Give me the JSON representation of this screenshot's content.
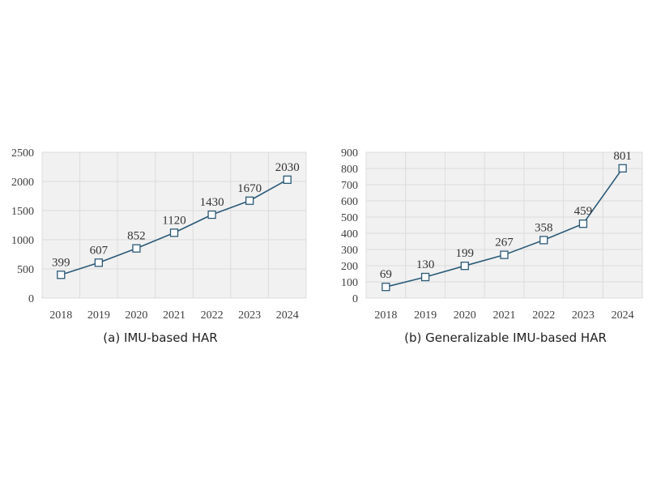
{
  "colors": {
    "line": "#2b5a78",
    "plot_background": "#f1f1f1",
    "grid": "#dcdcdc"
  },
  "chart_data": [
    {
      "type": "line",
      "title": "",
      "caption": "(a) IMU-based HAR",
      "xlabel": "",
      "ylabel": "",
      "x": [
        "2018",
        "2019",
        "2020",
        "2021",
        "2022",
        "2023",
        "2024"
      ],
      "series": [
        {
          "values": [
            399,
            607,
            852,
            1120,
            1430,
            1670,
            2030
          ]
        }
      ],
      "data_labels": [
        "399",
        "607",
        "852",
        "1120",
        "1430",
        "1670",
        "2030"
      ],
      "ylim": [
        0,
        2500
      ],
      "yticks": [
        "0",
        "500",
        "1000",
        "1500",
        "2000",
        "2500"
      ],
      "grid": true,
      "marker": "square-hollow"
    },
    {
      "type": "line",
      "title": "",
      "caption": "(b) Generalizable IMU-based HAR",
      "xlabel": "",
      "ylabel": "",
      "x": [
        "2018",
        "2019",
        "2020",
        "2021",
        "2022",
        "2023",
        "2024"
      ],
      "series": [
        {
          "values": [
            69,
            130,
            199,
            267,
            358,
            459,
            801
          ]
        }
      ],
      "data_labels": [
        "69",
        "130",
        "199",
        "267",
        "358",
        "459",
        "801"
      ],
      "ylim": [
        0,
        900
      ],
      "yticks": [
        "0",
        "100",
        "200",
        "300",
        "400",
        "500",
        "600",
        "700",
        "800",
        "900"
      ],
      "grid": true,
      "marker": "square-hollow"
    }
  ]
}
